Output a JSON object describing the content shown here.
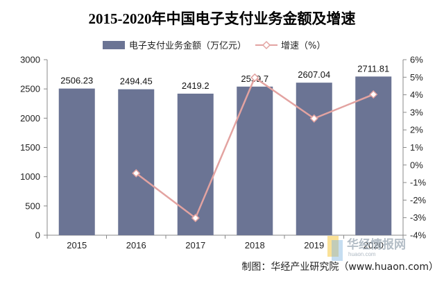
{
  "chart_data": {
    "type": "bar+line",
    "title": "2015-2020年中国电子支付业务金额及增速",
    "categories": [
      "2015",
      "2016",
      "2017",
      "2018",
      "2019",
      "2020"
    ],
    "series": [
      {
        "name": "电子支付业务金额（万亿元）",
        "type": "bar",
        "axis": "left",
        "values": [
          2506.23,
          2494.45,
          2419.2,
          2539.7,
          2607.04,
          2711.81
        ],
        "labels": [
          "2506.23",
          "2494.45",
          "2419.2",
          "2539.7",
          "2607.04",
          "2711.81"
        ]
      },
      {
        "name": "增速（%）",
        "type": "line",
        "axis": "right",
        "values": [
          null,
          -0.47,
          -3.02,
          4.98,
          2.65,
          4.02
        ]
      }
    ],
    "y_left": {
      "min": 0,
      "max": 3000,
      "step": 500,
      "ticks": [
        "0",
        "500",
        "1000",
        "1500",
        "2000",
        "2500",
        "3000"
      ]
    },
    "y_right": {
      "min": -4,
      "max": 6,
      "step": 1,
      "ticks": [
        "-4%",
        "-3%",
        "-2%",
        "-1%",
        "0%",
        "1%",
        "2%",
        "3%",
        "4%",
        "5%",
        "6%"
      ]
    },
    "legend_position": "top-center",
    "grid": false
  },
  "colors": {
    "bar": "#6b7494",
    "line": "#e3a3a1",
    "axis": "#888888"
  },
  "source": "制图：华经产业研究院（www.huaon.com）",
  "watermark": {
    "text": "华经情报网",
    "sub": "huaon.com"
  }
}
